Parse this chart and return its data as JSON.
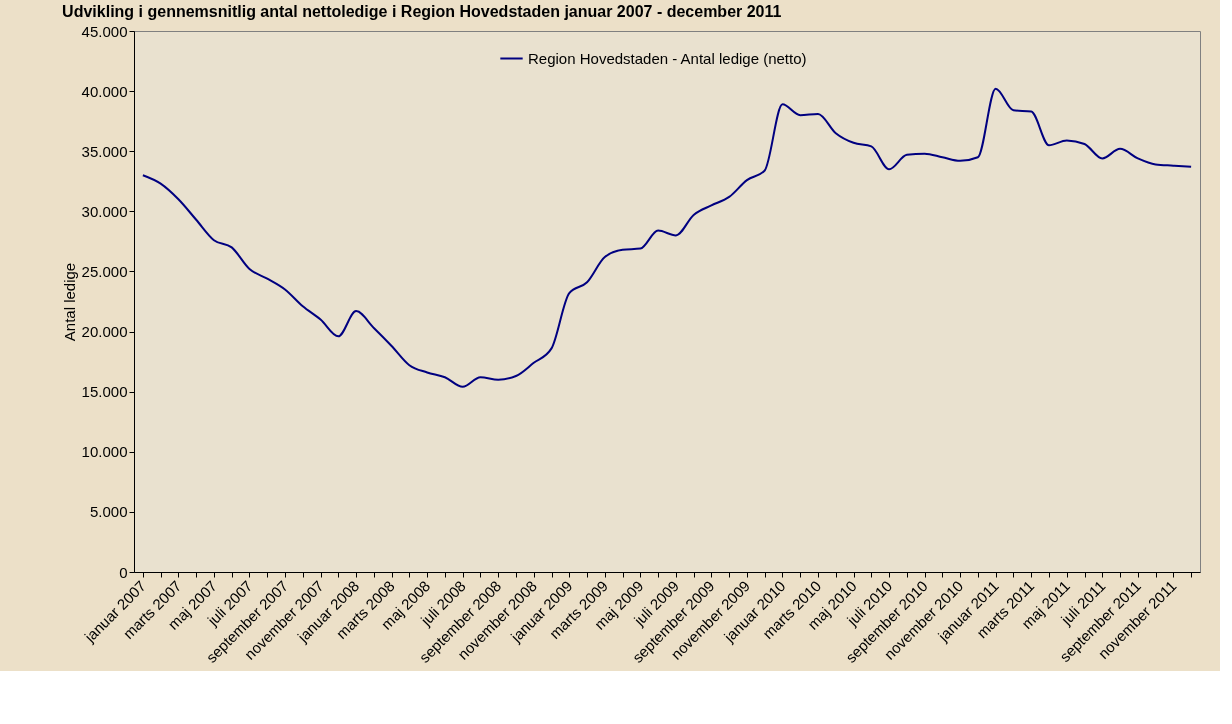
{
  "chart_data": {
    "type": "line",
    "title": "Udvikling i gennemsnitlig antal nettoledige i Region Hovedstaden januar 2007 - december 2011",
    "ylabel": "Antal ledige",
    "categories": [
      "januar 2007",
      null,
      "marts 2007",
      null,
      "maj 2007",
      null,
      "juli 2007",
      null,
      "september 2007",
      null,
      "november 2007",
      null,
      "januar 2008",
      null,
      "marts 2008",
      null,
      "maj 2008",
      null,
      "juli 2008",
      null,
      "september 2008",
      null,
      "november 2008",
      null,
      "januar 2009",
      null,
      "marts 2009",
      null,
      "maj 2009",
      null,
      "juli 2009",
      null,
      "september 2009",
      null,
      "november 2009",
      null,
      "januar 2010",
      null,
      "marts 2010",
      null,
      "maj 2010",
      null,
      "juli 2010",
      null,
      "september 2010",
      null,
      "november 2010",
      null,
      "januar 2011",
      null,
      "marts 2011",
      null,
      "maj 2011",
      null,
      "juli 2011",
      null,
      "september 2011",
      null,
      "november 2011",
      null
    ],
    "series": [
      {
        "name": "Region Hovedstaden - Antal ledige (netto)",
        "color": "#000080",
        "values": [
          33000,
          32300,
          31000,
          29300,
          27600,
          27000,
          25200,
          24400,
          23500,
          22100,
          21000,
          19600,
          21700,
          20300,
          18800,
          17200,
          16600,
          16200,
          15400,
          16200,
          16000,
          16300,
          17400,
          18600,
          23200,
          24100,
          26200,
          26800,
          26900,
          28400,
          28000,
          29700,
          30500,
          31200,
          32600,
          33400,
          38900,
          38000,
          38100,
          36500,
          35700,
          35400,
          33500,
          34700,
          34800,
          34500,
          34200,
          34500,
          40200,
          38400,
          38300,
          35500,
          35900,
          35600,
          34400,
          35200,
          34400,
          33900,
          33800,
          33700
        ]
      }
    ],
    "ylim": [
      0,
      45000
    ],
    "yticks": [
      {
        "value": 0,
        "label": "0"
      },
      {
        "value": 5000,
        "label": "5.000"
      },
      {
        "value": 10000,
        "label": "10.000"
      },
      {
        "value": 15000,
        "label": "15.000"
      },
      {
        "value": 20000,
        "label": "20.000"
      },
      {
        "value": 25000,
        "label": "25.000"
      },
      {
        "value": 30000,
        "label": "30.000"
      },
      {
        "value": 35000,
        "label": "35.000"
      },
      {
        "value": 40000,
        "label": "40.000"
      },
      {
        "value": 45000,
        "label": "45.000"
      }
    ],
    "grid": false,
    "legend": "top",
    "marker": "none",
    "line_style": "solid"
  }
}
